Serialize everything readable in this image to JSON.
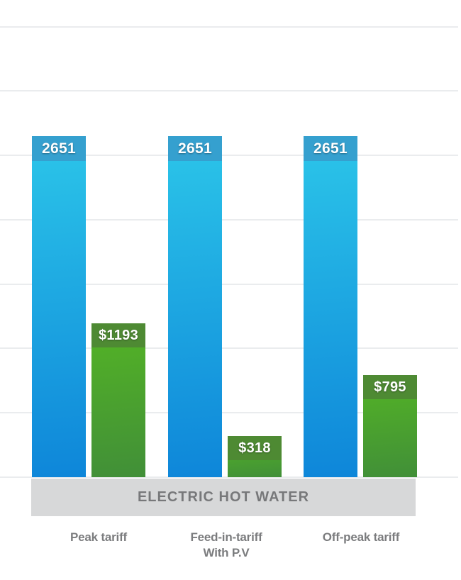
{
  "chart_data": {
    "type": "bar",
    "banner_title": "ELECTRIC HOT WATER",
    "categories": [
      {
        "lines": [
          "Peak tariff"
        ]
      },
      {
        "lines": [
          "Feed-in-tariff",
          "With P.V"
        ]
      },
      {
        "lines": [
          "Off-peak tariff"
        ]
      }
    ],
    "series": [
      {
        "name": "blue-bars",
        "values": [
          2651,
          2651,
          2651
        ],
        "labels": [
          "2651",
          "2651",
          "2651"
        ],
        "cap_color": "#35a0cf",
        "body_top_color": "#2cc6e9",
        "body_bottom_color": "#0e86d9"
      },
      {
        "name": "green-bars",
        "values": [
          1193,
          318,
          795
        ],
        "labels": [
          "$1193",
          "$318",
          "$795"
        ],
        "cap_color": "#4e8a33",
        "body_top_color": "#54b425",
        "body_bottom_color": "#418f38"
      }
    ],
    "ylim": [
      0,
      3500
    ],
    "gridline_step": 500,
    "grid": true,
    "legend": "none",
    "xlabel": "",
    "ylabel": "",
    "colors": {
      "value_label": "#ffffff",
      "category_label": "#7b7c7e",
      "banner_bg": "#d7d8d9",
      "banner_text": "#77787a",
      "gridline": "#eaecee",
      "background": "#ffffff"
    }
  }
}
